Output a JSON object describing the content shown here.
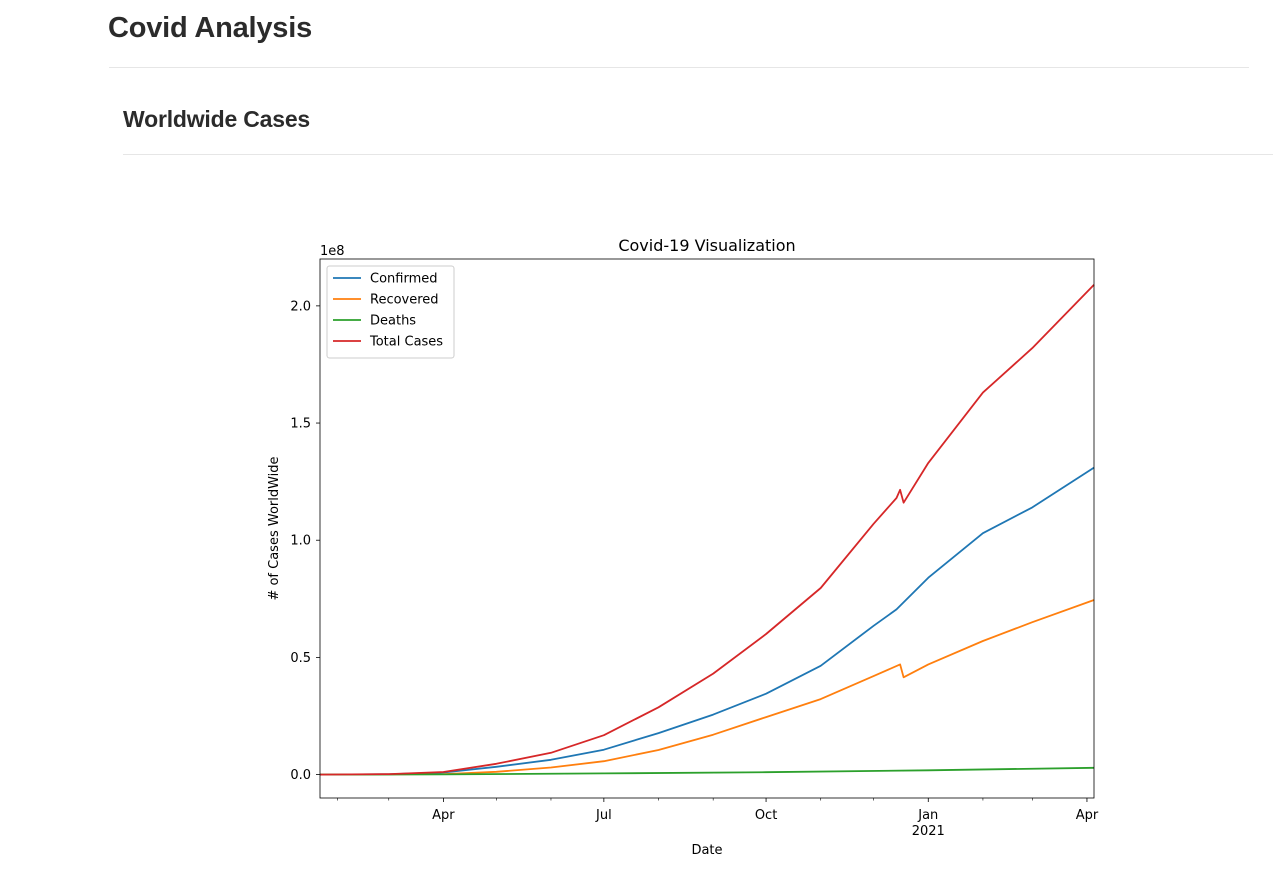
{
  "page": {
    "title": "Covid Analysis"
  },
  "section": {
    "title": "Worldwide Cases"
  },
  "chart_data": {
    "type": "line",
    "title": "Covid-19 Visualization",
    "xlabel": "Date",
    "ylabel": "# of Cases WorldWide",
    "offset_label": "1e8",
    "x_range": [
      "2020-01-22",
      "2021-04-05"
    ],
    "ylim": [
      -0.1,
      2.2
    ],
    "y_ticks": [
      0.0,
      0.5,
      1.0,
      1.5,
      2.0
    ],
    "y_tick_labels": [
      "0.0",
      "0.5",
      "1.0",
      "1.5",
      "2.0"
    ],
    "x_tick_labels": [
      {
        "date": "2020-04-01",
        "label": "Apr",
        "sub": ""
      },
      {
        "date": "2020-07-01",
        "label": "Jul",
        "sub": ""
      },
      {
        "date": "2020-10-01",
        "label": "Oct",
        "sub": ""
      },
      {
        "date": "2021-01-01",
        "label": "Jan",
        "sub": "2021"
      },
      {
        "date": "2021-04-01",
        "label": "Apr",
        "sub": ""
      }
    ],
    "legend_position": "upper-left",
    "series": [
      {
        "name": "Confirmed",
        "color": "#1f77b4",
        "points": [
          [
            "2020-01-22",
            0
          ],
          [
            "2020-03-01",
            0.001
          ],
          [
            "2020-04-01",
            0.009
          ],
          [
            "2020-05-01",
            0.033
          ],
          [
            "2020-06-01",
            0.063
          ],
          [
            "2020-07-01",
            0.106
          ],
          [
            "2020-08-01",
            0.177
          ],
          [
            "2020-09-01",
            0.256
          ],
          [
            "2020-10-01",
            0.345
          ],
          [
            "2020-11-01",
            0.464
          ],
          [
            "2020-12-01",
            0.635
          ],
          [
            "2020-12-14",
            0.705
          ],
          [
            "2021-01-01",
            0.84
          ],
          [
            "2021-02-01",
            1.03
          ],
          [
            "2021-03-01",
            1.14
          ],
          [
            "2021-04-05",
            1.31
          ]
        ]
      },
      {
        "name": "Recovered",
        "color": "#ff7f0e",
        "points": [
          [
            "2020-01-22",
            0
          ],
          [
            "2020-04-01",
            0.002
          ],
          [
            "2020-05-01",
            0.012
          ],
          [
            "2020-06-01",
            0.03
          ],
          [
            "2020-07-01",
            0.057
          ],
          [
            "2020-08-01",
            0.105
          ],
          [
            "2020-09-01",
            0.17
          ],
          [
            "2020-10-01",
            0.245
          ],
          [
            "2020-11-01",
            0.322
          ],
          [
            "2020-12-01",
            0.42
          ],
          [
            "2020-12-16",
            0.47
          ],
          [
            "2020-12-18",
            0.415
          ],
          [
            "2021-01-01",
            0.47
          ],
          [
            "2021-02-01",
            0.57
          ],
          [
            "2021-03-01",
            0.65
          ],
          [
            "2021-04-05",
            0.745
          ]
        ]
      },
      {
        "name": "Deaths",
        "color": "#2ca02c",
        "points": [
          [
            "2020-01-22",
            0
          ],
          [
            "2020-04-01",
            0.0005
          ],
          [
            "2020-07-01",
            0.005
          ],
          [
            "2020-10-01",
            0.01
          ],
          [
            "2021-01-01",
            0.018
          ],
          [
            "2021-04-05",
            0.029
          ]
        ]
      },
      {
        "name": "Total Cases",
        "color": "#d62728",
        "points": [
          [
            "2020-01-22",
            0
          ],
          [
            "2020-03-01",
            0.002
          ],
          [
            "2020-04-01",
            0.011
          ],
          [
            "2020-05-01",
            0.046
          ],
          [
            "2020-06-01",
            0.093
          ],
          [
            "2020-07-01",
            0.168
          ],
          [
            "2020-08-01",
            0.287
          ],
          [
            "2020-09-01",
            0.431
          ],
          [
            "2020-10-01",
            0.6
          ],
          [
            "2020-11-01",
            0.796
          ],
          [
            "2020-12-01",
            1.07
          ],
          [
            "2020-12-14",
            1.18
          ],
          [
            "2020-12-16",
            1.215
          ],
          [
            "2020-12-18",
            1.16
          ],
          [
            "2021-01-01",
            1.33
          ],
          [
            "2021-02-01",
            1.63
          ],
          [
            "2021-03-01",
            1.82
          ],
          [
            "2021-04-05",
            2.09
          ]
        ]
      }
    ]
  }
}
